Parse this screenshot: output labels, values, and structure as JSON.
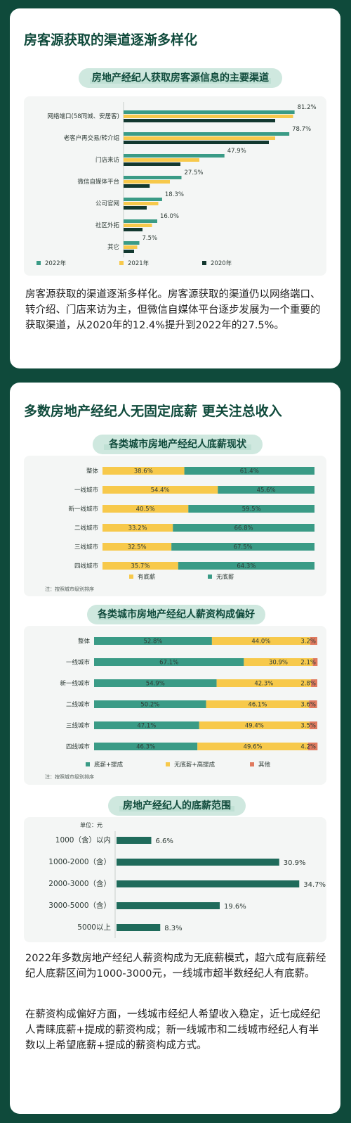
{
  "colors": {
    "green": "#3a9b86",
    "yellow": "#f7c94b",
    "dark": "#12382f",
    "red": "#e07a5f",
    "teal_bar": "#1f6b5b"
  },
  "section1": {
    "title": "房客源获取的渠道逐渐多样化",
    "chart_title": "房地产经纪人获取房客源信息的主要渠道",
    "paragraph": "房客源获取的渠道逐渐多样化。房客源获取的渠道仍以网络端口、转介绍、门店来访为主，但微信自媒体平台逐步发展为一个重要的获取渠道，从2020年的12.4%提升到2022年的27.5%。"
  },
  "section2": {
    "title": "多数房地产经纪人无固定底薪  更关注总收入",
    "chart2_title": "各类城市房地产经纪人底薪现状",
    "chart2_note": "注：按照城市级别排序",
    "chart3_title": "各类城市房地产经纪人薪资构成偏好",
    "chart3_note": "注：按照城市级别排序",
    "chart4_title": "房地产经纪人的底薪范围",
    "chart4_unit": "单位：元",
    "paragraph1": "2022年多数房地产经纪人薪资构成为无底薪模式，超六成有底薪经纪人底薪区间为1000-3000元，一线城市超半数经纪人有底薪。",
    "paragraph2": "在薪资构成偏好方面，一线城市经纪人希望收入稳定，近七成经纪人青睐底薪+提成的薪资构成；新一线城市和二线城市经纪人有半数以上希望底薪+提成的薪资构成方式。"
  },
  "chart_data": [
    {
      "type": "bar",
      "orientation": "horizontal",
      "categories": [
        "网络端口(58同城、安居客)",
        "老客户再交易/转介绍",
        "门店来访",
        "微信自媒体平台",
        "公司官网",
        "社区外拓",
        "其它"
      ],
      "series": [
        {
          "name": "2022年",
          "color": "#3a9b86",
          "values": [
            81.2,
            78.7,
            47.9,
            27.5,
            18.3,
            16.0,
            7.5
          ]
        },
        {
          "name": "2021年",
          "color": "#f7c94b",
          "values": [
            80.5,
            72.0,
            36.0,
            22.0,
            16.5,
            13.5,
            6.5
          ]
        },
        {
          "name": "2020年",
          "color": "#12382f",
          "values": [
            72.0,
            69.0,
            27.0,
            12.4,
            11.0,
            9.0,
            5.0
          ]
        }
      ],
      "data_labels": [
        "81.2%",
        "78.7%",
        "47.9%",
        "27.5%",
        "18.3%",
        "16.0%",
        "7.5%"
      ],
      "legend_position": "bottom",
      "xlim": [
        0,
        90
      ]
    },
    {
      "type": "bar",
      "orientation": "horizontal",
      "stacked": true,
      "categories": [
        "整体",
        "一线城市",
        "新一线城市",
        "二线城市",
        "三线城市",
        "四线城市"
      ],
      "series": [
        {
          "name": "有底薪",
          "color": "#f7c94b",
          "values": [
            38.6,
            54.4,
            40.5,
            33.2,
            32.5,
            35.7
          ]
        },
        {
          "name": "无底薪",
          "color": "#3a9b86",
          "values": [
            61.4,
            45.6,
            59.5,
            66.8,
            67.5,
            64.3
          ]
        }
      ],
      "legend_position": "bottom"
    },
    {
      "type": "bar",
      "orientation": "horizontal",
      "stacked": true,
      "categories": [
        "整体",
        "一线城市",
        "新一线城市",
        "二线城市",
        "三线城市",
        "四线城市"
      ],
      "series": [
        {
          "name": "底薪+提成",
          "color": "#3a9b86",
          "values": [
            52.8,
            67.1,
            54.9,
            50.2,
            47.1,
            46.3
          ]
        },
        {
          "name": "无底薪+高提成",
          "color": "#f7c94b",
          "values": [
            44.0,
            30.9,
            42.3,
            46.1,
            49.4,
            49.6
          ]
        },
        {
          "name": "其他",
          "color": "#e07a5f",
          "values": [
            3.2,
            2.1,
            2.8,
            3.6,
            3.5,
            4.2
          ]
        }
      ],
      "legend_position": "bottom"
    },
    {
      "type": "bar",
      "orientation": "horizontal",
      "categories": [
        "1000（含）以内",
        "1000-2000（含）",
        "2000-3000（含）",
        "3000-5000（含）",
        "5000以上"
      ],
      "values": [
        6.6,
        30.9,
        34.7,
        19.6,
        8.3
      ],
      "xlim": [
        0,
        40
      ]
    }
  ]
}
